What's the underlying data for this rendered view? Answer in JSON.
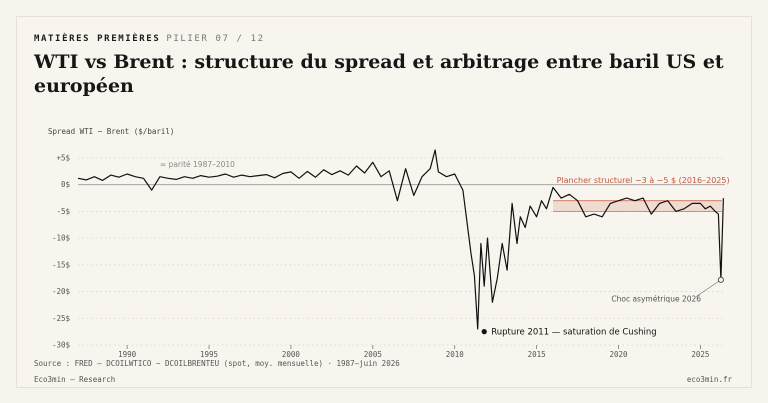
{
  "header": {
    "section": "MATIÈRES PREMIÈRES",
    "pilier": "PILIER 07 / 12",
    "title": "WTI vs Brent : structure du spread et arbitrage entre baril US et européen"
  },
  "footer": {
    "source": "Source : FRED — DCOILWTICO − DCOILBRENTEU (spot, moy. mensuelle) · 1987–juin 2026",
    "brand": "Eco3min — Research",
    "site": "eco3min.fr"
  },
  "chart_data": {
    "type": "line",
    "ylabel": "Spread WTI − Brent ($/baril)",
    "xlim": [
      1987,
      2026.5
    ],
    "ylim": [
      -30,
      5
    ],
    "x_ticks": [
      {
        "value": 1990,
        "label": "1990"
      },
      {
        "value": 1995,
        "label": "1995"
      },
      {
        "value": 2000,
        "label": "2000"
      },
      {
        "value": 2005,
        "label": "2005"
      },
      {
        "value": 2010,
        "label": "2010"
      },
      {
        "value": 2015,
        "label": "2015"
      },
      {
        "value": 2020,
        "label": "2020"
      },
      {
        "value": 2025,
        "label": "2025"
      }
    ],
    "y_ticks": [
      {
        "value": 5,
        "label": "+5$"
      },
      {
        "value": 0,
        "label": "0$"
      },
      {
        "value": -5,
        "label": "-5$"
      },
      {
        "value": -10,
        "label": "-10$"
      },
      {
        "value": -15,
        "label": "-15$"
      },
      {
        "value": -20,
        "label": "-20$"
      },
      {
        "value": -25,
        "label": "-25$"
      },
      {
        "value": -30,
        "label": "-30$"
      }
    ],
    "grid": true,
    "colors": {
      "line": "#111111",
      "band": "#c8553a",
      "zero": "#9a9a9a",
      "grid": "#d9d4c8",
      "axis": "#777777"
    },
    "series": [
      {
        "x": [
          1987.0,
          1987.5,
          1988.0,
          1988.5,
          1989.0,
          1989.5,
          1990.0,
          1990.5,
          1991.0,
          1991.5,
          1992.0,
          1992.5,
          1993.0,
          1993.5,
          1994.0,
          1994.5,
          1995.0,
          1995.5,
          1996.0,
          1996.5,
          1997.0,
          1997.5,
          1998.0,
          1998.5,
          1999.0,
          1999.5,
          2000.0,
          2000.5,
          2001.0,
          2001.5,
          2002.0,
          2002.5,
          2003.0,
          2003.5,
          2004.0,
          2004.5,
          2005.0,
          2005.5,
          2006.0,
          2006.5,
          2007.0,
          2007.5,
          2008.0,
          2008.5,
          2008.8,
          2009.0,
          2009.5,
          2010.0,
          2010.5,
          2011.0,
          2011.2,
          2011.4,
          2011.6,
          2011.8,
          2012.0,
          2012.3,
          2012.6,
          2012.9,
          2013.2,
          2013.5,
          2013.8,
          2014.0,
          2014.3,
          2014.6,
          2015.0,
          2015.3,
          2015.6,
          2016.0,
          2016.5,
          2017.0,
          2017.5,
          2018.0,
          2018.5,
          2019.0,
          2019.5,
          2020.0,
          2020.5,
          2021.0,
          2021.5,
          2022.0,
          2022.5,
          2023.0,
          2023.5,
          2024.0,
          2024.5,
          2025.0,
          2025.3,
          2025.6,
          2025.9,
          2026.1,
          2026.25,
          2026.4
        ],
        "y": [
          1.2,
          0.9,
          1.5,
          0.8,
          1.8,
          1.4,
          2.0,
          1.5,
          1.2,
          -1.0,
          1.5,
          1.2,
          1.0,
          1.5,
          1.2,
          1.7,
          1.4,
          1.6,
          2.0,
          1.4,
          1.8,
          1.5,
          1.7,
          1.9,
          1.3,
          2.1,
          2.4,
          1.2,
          2.5,
          1.4,
          2.8,
          1.9,
          2.6,
          1.8,
          3.5,
          2.2,
          4.2,
          1.5,
          2.6,
          -3.0,
          3.0,
          -2.0,
          1.5,
          3.0,
          6.5,
          2.4,
          1.5,
          2.0,
          -1.0,
          -13.0,
          -17.0,
          -27.0,
          -11.0,
          -19.0,
          -10.0,
          -22.0,
          -17.5,
          -11.0,
          -16.0,
          -3.5,
          -11.0,
          -6.0,
          -8.0,
          -4.0,
          -6.0,
          -3.0,
          -4.5,
          -0.5,
          -2.5,
          -1.8,
          -3.0,
          -6.0,
          -5.5,
          -6.0,
          -3.5,
          -3.0,
          -2.5,
          -3.0,
          -2.5,
          -5.5,
          -3.5,
          -3.0,
          -5.0,
          -4.5,
          -3.5,
          -3.5,
          -4.5,
          -4.0,
          -5.0,
          -5.5,
          -17.8,
          -2.5
        ]
      }
    ],
    "annotations": {
      "parity": {
        "label": "≈ parité 1987–2010",
        "x": 1992,
        "y": 3.3
      },
      "plancher": {
        "label": "Plancher structurel −3 à −5 $ (2016–2025)",
        "band": [
          -3,
          -5
        ],
        "x_range": [
          2016,
          2026.3
        ],
        "text_x": 2021.5,
        "text_y": 0.3
      },
      "rupture": {
        "label": "Rupture 2011 — saturation de Cushing",
        "point_x": 2011.8,
        "point_y": -27.5
      },
      "choc": {
        "label": "Choc asymétrique 2026",
        "point_x": 2026.25,
        "point_y": -17.8,
        "text_x": 2022.3,
        "text_y": -21.5
      }
    }
  }
}
